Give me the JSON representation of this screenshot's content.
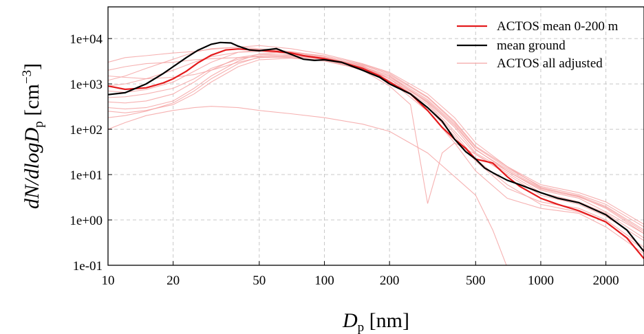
{
  "chart_data": {
    "type": "line",
    "title": "",
    "xlabel": {
      "main": "D",
      "sub": "p",
      "unit": " [nm]"
    },
    "ylabel": {
      "pre": "dN/dlogD",
      "sub": "p",
      "unit_pre": " [cm",
      "sup": "−3",
      "unit_post": "]"
    },
    "x_scale": "log",
    "y_scale": "log",
    "xlim": [
      10,
      3000
    ],
    "ylim": [
      0.1,
      50000
    ],
    "x_ticks": [
      10,
      20,
      50,
      100,
      200,
      500,
      1000,
      2000
    ],
    "x_tick_labels": [
      "10",
      "20",
      "50",
      "100",
      "200",
      "500",
      "1000",
      "2000"
    ],
    "y_ticks": [
      0.1,
      1,
      10,
      100,
      1000,
      10000
    ],
    "y_tick_labels": [
      "1e-01",
      "1e+00",
      "1e+01",
      "1e+02",
      "1e+03",
      "1e+04"
    ],
    "grid": true,
    "legend_position": "top-right",
    "series": [
      {
        "name": "ACTOS mean 0-200 m",
        "color": "#e41a1c",
        "x": [
          10,
          12,
          15,
          18,
          20,
          23,
          26,
          30,
          35,
          40,
          50,
          60,
          70,
          80,
          100,
          120,
          150,
          180,
          200,
          250,
          300,
          350,
          400,
          450,
          500,
          600,
          700,
          800,
          1000,
          1200,
          1500,
          2000,
          2500,
          3000
        ],
        "y": [
          900,
          760,
          820,
          1050,
          1300,
          1900,
          2900,
          4300,
          5600,
          5900,
          5500,
          5200,
          4800,
          4200,
          3600,
          3000,
          2200,
          1500,
          1100,
          600,
          260,
          110,
          60,
          38,
          22,
          18,
          9,
          5.5,
          3,
          2.2,
          1.6,
          0.9,
          0.4,
          0.14
        ]
      },
      {
        "name": "mean ground",
        "color": "#000000",
        "x": [
          10,
          12,
          15,
          18,
          20,
          23,
          26,
          30,
          33,
          37,
          40,
          45,
          50,
          55,
          60,
          70,
          80,
          90,
          100,
          120,
          150,
          180,
          200,
          250,
          300,
          350,
          400,
          450,
          500,
          550,
          600,
          700,
          800,
          1000,
          1200,
          1500,
          2000,
          2500,
          3000
        ],
        "y": [
          580,
          640,
          1000,
          1700,
          2400,
          3800,
          5500,
          7500,
          8200,
          8000,
          6800,
          5600,
          5400,
          5700,
          6000,
          4500,
          3500,
          3300,
          3400,
          3000,
          2000,
          1400,
          1000,
          600,
          300,
          150,
          60,
          32,
          22,
          14,
          11,
          7.5,
          6,
          4,
          3,
          2.4,
          1.3,
          0.6,
          0.2
        ]
      },
      {
        "name": "ACTOS all adjusted",
        "color": "#f4a3a3",
        "lines": [
          {
            "x": [
              10,
              12,
              15,
              20,
              25,
              30,
              40,
              50,
              70,
              100,
              150,
              200,
              300,
              400,
              500,
              700,
              1000,
              1500,
              2000,
              3000
            ],
            "y": [
              1200,
              1500,
              2200,
              3500,
              5000,
              6000,
              6500,
              6000,
              5200,
              4000,
              2500,
              1300,
              400,
              110,
              30,
              12,
              4.5,
              3,
              1.5,
              0.5
            ]
          },
          {
            "x": [
              10,
              12,
              15,
              20,
              25,
              30,
              40,
              50,
              70,
              100,
              150,
              200,
              300,
              400,
              500,
              700,
              1000,
              1500,
              2000,
              3000
            ],
            "y": [
              3000,
              3800,
              4200,
              4800,
              5200,
              5800,
              6500,
              7000,
              6000,
              4500,
              2800,
              1800,
              600,
              180,
              50,
              15,
              6,
              4,
              2.5,
              0.8
            ]
          },
          {
            "x": [
              10,
              12,
              15,
              20,
              25,
              30,
              40,
              50,
              70,
              100,
              150,
              200,
              300,
              400,
              500,
              700,
              1000,
              1500,
              2000,
              3000
            ],
            "y": [
              700,
              650,
              750,
              1100,
              1900,
              3000,
              5000,
              5500,
              5000,
              3800,
              2400,
              1500,
              380,
              90,
              28,
              10,
              3.5,
              2.2,
              1.2,
              0.35
            ]
          },
          {
            "x": [
              10,
              12,
              15,
              20,
              25,
              30,
              40,
              50,
              70,
              100,
              150,
              200,
              300,
              400,
              500,
              700,
              1000,
              1500,
              2000,
              3000
            ],
            "y": [
              400,
              380,
              420,
              600,
              1100,
              2000,
              3800,
              4500,
              4300,
              3500,
              2200,
              1300,
              300,
              70,
              20,
              5,
              2.5,
              1.8,
              1.0,
              0.25
            ]
          },
          {
            "x": [
              10,
              12,
              15,
              20,
              25,
              30,
              40,
              50,
              70,
              100,
              150,
              200,
              300,
              400,
              500,
              700,
              1000,
              1500,
              2000,
              3000
            ],
            "y": [
              250,
              230,
              260,
              350,
              600,
              1100,
              2400,
              3400,
              3700,
              3200,
              2100,
              1200,
              250,
              50,
              12,
              3,
              1.8,
              1.4,
              0.7,
              0.18
            ]
          },
          {
            "x": [
              10,
              12,
              15,
              20,
              25,
              30,
              40,
              50,
              70,
              100,
              150,
              200,
              300,
              400,
              500,
              600,
              700,
              1000,
              1500,
              2000,
              3000
            ],
            "y": [
              100,
              140,
              200,
              260,
              300,
              320,
              300,
              260,
              220,
              180,
              130,
              90,
              30,
              9,
              3.5,
              0.6,
              0.09,
              0.08,
              0.08,
              0.08,
              0.08
            ]
          },
          {
            "x": [
              10,
              12,
              15,
              20,
              25,
              30,
              40,
              50,
              70,
              100,
              150,
              200,
              250,
              300,
              350,
              400,
              500,
              700,
              1000,
              1500,
              2000,
              3000
            ],
            "y": [
              1500,
              1400,
              1300,
              1400,
              1600,
              2000,
              3000,
              3800,
              4000,
              3500,
              2000,
              900,
              350,
              2.3,
              30,
              50,
              28,
              11,
              4,
              2.5,
              1.4,
              0.4
            ]
          },
          {
            "x": [
              10,
              12,
              15,
              20,
              25,
              30,
              40,
              50,
              70,
              100,
              150,
              200,
              300,
              400,
              500,
              700,
              1000,
              1500,
              2000,
              3000
            ],
            "y": [
              2000,
              2400,
              2800,
              3000,
              3400,
              3600,
              3800,
              4000,
              3800,
              3300,
              2300,
              1400,
              420,
              120,
              35,
              13,
              5,
              3.4,
              2,
              0.6
            ]
          },
          {
            "x": [
              10,
              12,
              15,
              20,
              25,
              30,
              40,
              50,
              70,
              100,
              150,
              200,
              300,
              400,
              500,
              700,
              1000,
              1500,
              2000,
              3000
            ],
            "y": [
              500,
              520,
              600,
              800,
              1300,
              2200,
              3500,
              4200,
              4400,
              3800,
              2600,
              1600,
              500,
              140,
              40,
              14,
              5.5,
              3.6,
              2.2,
              0.7
            ]
          },
          {
            "x": [
              10,
              12,
              15,
              20,
              25,
              30,
              40,
              50,
              70,
              100,
              150,
              200,
              300,
              400,
              500,
              700,
              1000,
              1500,
              2000,
              3000
            ],
            "y": [
              180,
              200,
              250,
              380,
              700,
              1300,
              2800,
              3900,
              4200,
              3600,
              2300,
              1300,
              350,
              80,
              22,
              6,
              2.2,
              1.5,
              0.9,
              0.22
            ]
          },
          {
            "x": [
              10,
              12,
              15,
              20,
              25,
              30,
              40,
              50,
              70,
              100,
              150,
              200,
              300,
              400,
              500,
              700,
              1000,
              1500,
              2000,
              3000
            ],
            "y": [
              900,
              1000,
              1300,
              2000,
              3000,
              4000,
              5000,
              5200,
              4600,
              3700,
              2400,
              1500,
              450,
              130,
              36,
              12,
              4.8,
              3.2,
              1.9,
              0.55
            ]
          },
          {
            "x": [
              10,
              12,
              15,
              20,
              25,
              30,
              40,
              50,
              70,
              100,
              150,
              200,
              300,
              400,
              500,
              700,
              1000,
              1500,
              2000,
              3000
            ],
            "y": [
              300,
              280,
              300,
              420,
              800,
              1500,
              3200,
              4600,
              5000,
              4200,
              2700,
              1700,
              520,
              150,
              42,
              15,
              5.2,
              3.3,
              1.8,
              0.5
            ]
          }
        ]
      }
    ]
  }
}
